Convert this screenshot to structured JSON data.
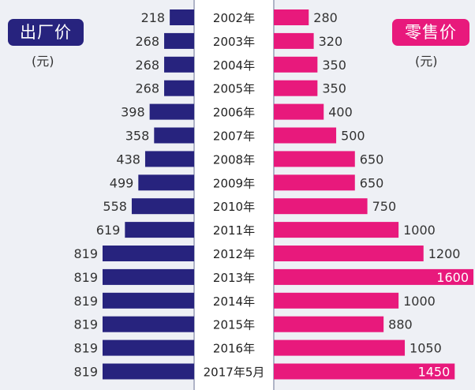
{
  "chart_data": {
    "type": "bar",
    "layout": "butterfly",
    "categories": [
      "2002年",
      "2003年",
      "2004年",
      "2005年",
      "2006年",
      "2007年",
      "2008年",
      "2009年",
      "2010年",
      "2011年",
      "2012年",
      "2013年",
      "2014年",
      "2015年",
      "2016年",
      "2017年5月"
    ],
    "series": [
      {
        "name": "出厂价",
        "unit": "(元)",
        "color": "#27237e",
        "side": "left",
        "values": [
          218,
          268,
          268,
          268,
          398,
          358,
          438,
          499,
          558,
          619,
          819,
          819,
          819,
          819,
          819,
          819
        ]
      },
      {
        "name": "零售价",
        "unit": "(元)",
        "color": "#e8197c",
        "side": "right",
        "values": [
          280,
          320,
          350,
          350,
          400,
          500,
          650,
          650,
          750,
          1000,
          1200,
          1600,
          1000,
          880,
          1050,
          1450
        ]
      }
    ],
    "legend_position": "top-corners",
    "grid": false
  }
}
